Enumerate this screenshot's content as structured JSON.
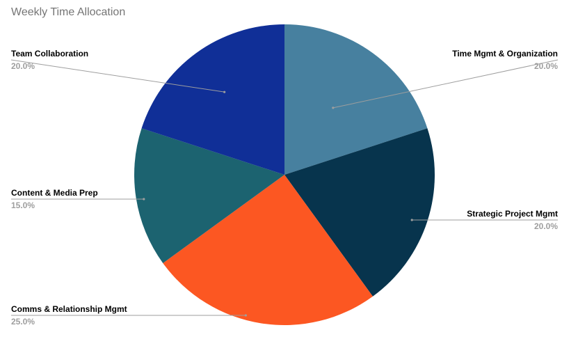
{
  "chart_data": {
    "type": "pie",
    "title": "Weekly Time Allocation",
    "slices": [
      {
        "label": "Time Mgmt & Organization",
        "value": 20.0,
        "percent_label": "20.0%",
        "color": "#47809f"
      },
      {
        "label": "Strategic Project Mgmt",
        "value": 20.0,
        "percent_label": "20.0%",
        "color": "#07344d"
      },
      {
        "label": "Comms & Relationship Mgmt",
        "value": 25.0,
        "percent_label": "25.0%",
        "color": "#fc5722"
      },
      {
        "label": "Content & Media Prep",
        "value": 15.0,
        "percent_label": "15.0%",
        "color": "#1c6370"
      },
      {
        "label": "Team Collaboration",
        "value": 20.0,
        "percent_label": "20.0%",
        "color": "#102f97"
      }
    ],
    "start_angle": "12 o'clock",
    "direction": "clockwise",
    "legend": "none"
  }
}
